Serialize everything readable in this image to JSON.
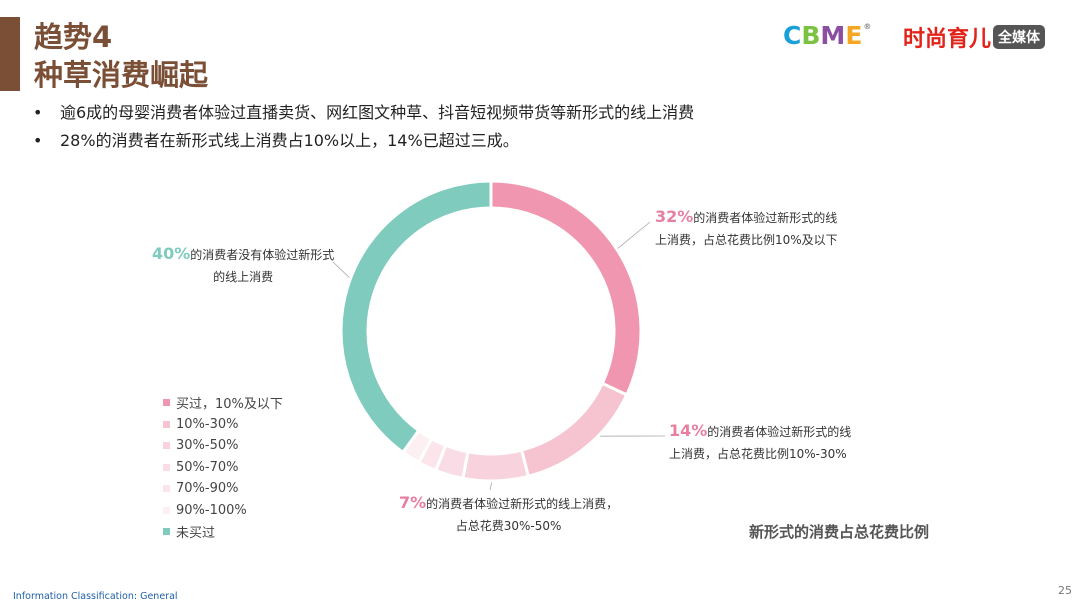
{
  "header": {
    "title_line1": "趋势4",
    "title_line2": "种草消费崛起",
    "accent_color": "#7b4f36"
  },
  "logos": {
    "cbme_letters": [
      "C",
      "B",
      "M",
      "E"
    ],
    "cbme_colors": [
      "#1aa0d8",
      "#7cc242",
      "#8a4fa0",
      "#f5a623"
    ],
    "cbme_mark": "®",
    "media_name": "时尚育儿",
    "media_tag": "全媒体"
  },
  "bullets": [
    "逾6成的母婴消费者体验过直播卖货、网红图文种草、抖音短视频带货等新形式的线上消费",
    "28%的消费者在新形式线上消费占10%以上，14%已超过三成。"
  ],
  "bullet_symbol": "•",
  "chart_data": {
    "type": "pie",
    "donut": true,
    "caption": "新形式的消费占总花费比例",
    "series": [
      {
        "name": "买过，10%及以下",
        "value": 32,
        "color": "#f096b0"
      },
      {
        "name": "10%-30%",
        "value": 14,
        "color": "#f6c3d1"
      },
      {
        "name": "30%-50%",
        "value": 7,
        "color": "#f8d3de"
      },
      {
        "name": "50%-70%",
        "value": 3,
        "color": "#f9dce5"
      },
      {
        "name": "70%-90%",
        "value": 2,
        "color": "#fbe5eb"
      },
      {
        "name": "90%-100%",
        "value": 2,
        "color": "#fdf0f3"
      },
      {
        "name": "未买过",
        "value": 40,
        "color": "#7fcbbd"
      }
    ],
    "annotations": [
      {
        "pct": "32%",
        "line1": "的消费者体验过新形式的线",
        "line2": "上消费，占总花费比例10%及以下",
        "color": "#e77fa0"
      },
      {
        "pct": "14%",
        "line1": "的消费者体验过新形式的线",
        "line2": "上消费，占总花费比例10%-30%",
        "color": "#e77fa0"
      },
      {
        "pct": "7%",
        "line1": "的消费者体验过新形式的线上消费，",
        "line2": "占总花费30%-50%",
        "color": "#e77fa0"
      },
      {
        "pct": "40%",
        "line1": "的消费者没有体验过新形式",
        "line2": "的线上消费",
        "color": "#7fcbbd"
      }
    ]
  },
  "footer": {
    "classification": "Information Classification:  General",
    "page_number": "25"
  }
}
